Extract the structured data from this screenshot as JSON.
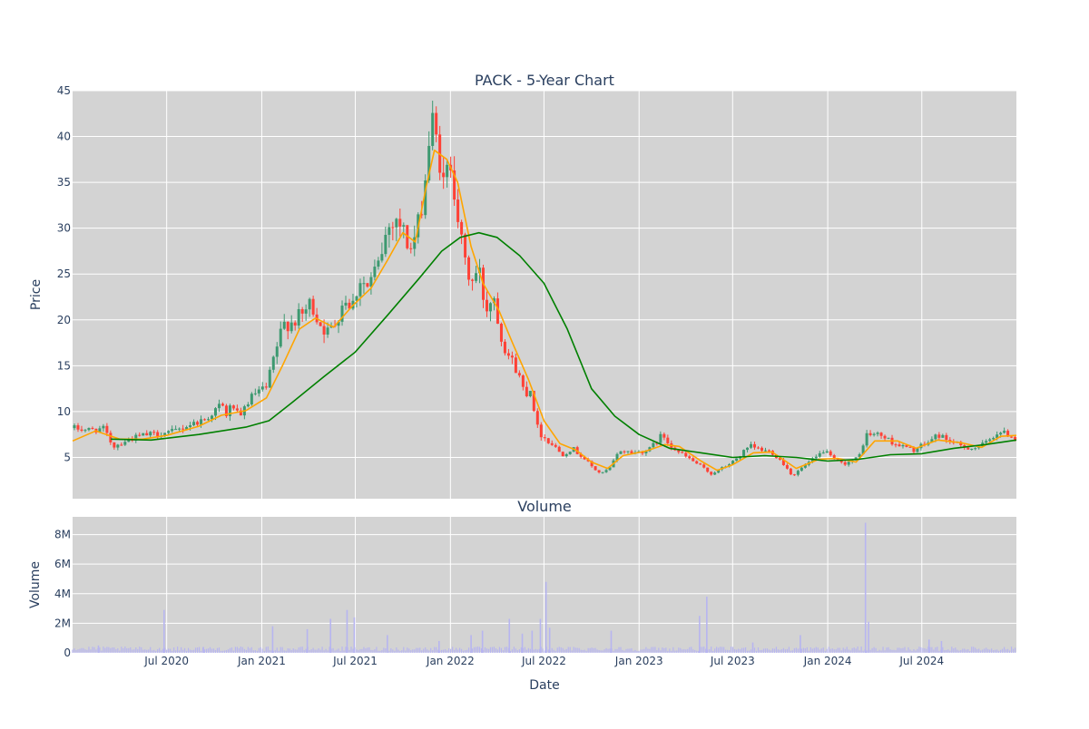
{
  "chart_data": [
    {
      "type": "candlestick",
      "title": "PACK - 5-Year Chart",
      "ylabel": "Price",
      "xlabel": "",
      "ylim": [
        0.5,
        45
      ],
      "yticks": [
        5,
        10,
        15,
        20,
        25,
        30,
        35,
        40,
        45
      ],
      "grid": true,
      "legend": "none",
      "x_range": [
        "2020-01-01",
        "2024-12-31"
      ],
      "colors": {
        "up": "#3d9970",
        "down": "#ff4136",
        "ma_short": "#ffa500",
        "ma_long": "#008000",
        "plot_bg": "#d3d3d3",
        "grid": "#ffffff"
      },
      "price_path": [
        [
          "2020-01-01",
          8.2
        ],
        [
          "2020-02-01",
          8.0
        ],
        [
          "2020-03-01",
          8.1
        ],
        [
          "2020-03-20",
          6.2
        ],
        [
          "2020-04-15",
          6.9
        ],
        [
          "2020-05-15",
          7.4
        ],
        [
          "2020-06-15",
          7.6
        ],
        [
          "2020-07-15",
          7.8
        ],
        [
          "2020-08-15",
          8.6
        ],
        [
          "2020-09-15",
          9.2
        ],
        [
          "2020-10-15",
          10.8
        ],
        [
          "2020-10-25",
          9.6
        ],
        [
          "2020-11-05",
          10.9
        ],
        [
          "2020-11-20",
          9.0
        ],
        [
          "2020-12-01",
          10.8
        ],
        [
          "2020-12-20",
          12.0
        ],
        [
          "2021-01-10",
          12.5
        ],
        [
          "2021-01-25",
          16.0
        ],
        [
          "2021-02-12",
          19.5
        ],
        [
          "2021-03-01",
          19.8
        ],
        [
          "2021-03-20",
          20.5
        ],
        [
          "2021-04-05",
          21.8
        ],
        [
          "2021-04-25",
          19.5
        ],
        [
          "2021-05-10",
          18.5
        ],
        [
          "2021-05-25",
          20.0
        ],
        [
          "2021-06-10",
          22.5
        ],
        [
          "2021-06-25",
          21.5
        ],
        [
          "2021-07-10",
          24.5
        ],
        [
          "2021-07-25",
          23.5
        ],
        [
          "2021-08-15",
          26.0
        ],
        [
          "2021-08-30",
          29.5
        ],
        [
          "2021-09-15",
          31.5
        ],
        [
          "2021-09-30",
          30.0
        ],
        [
          "2021-10-15",
          27.5
        ],
        [
          "2021-10-30",
          30.0
        ],
        [
          "2021-11-15",
          36.0
        ],
        [
          "2021-11-25",
          42.0
        ],
        [
          "2021-12-10",
          38.0
        ],
        [
          "2021-12-20",
          34.0
        ],
        [
          "2021-12-31",
          38.0
        ],
        [
          "2022-01-10",
          34.0
        ],
        [
          "2022-01-25",
          27.0
        ],
        [
          "2022-02-10",
          24.0
        ],
        [
          "2022-02-25",
          25.5
        ],
        [
          "2022-03-10",
          21.0
        ],
        [
          "2022-03-25",
          23.0
        ],
        [
          "2022-04-10",
          18.0
        ],
        [
          "2022-04-25",
          16.0
        ],
        [
          "2022-05-10",
          14.5
        ],
        [
          "2022-05-25",
          12.0
        ],
        [
          "2022-06-05",
          12.5
        ],
        [
          "2022-06-20",
          7.8
        ],
        [
          "2022-07-05",
          7.0
        ],
        [
          "2022-07-20",
          6.3
        ],
        [
          "2022-08-05",
          5.3
        ],
        [
          "2022-08-25",
          6.0
        ],
        [
          "2022-09-15",
          5.0
        ],
        [
          "2022-10-05",
          3.8
        ],
        [
          "2022-10-20",
          3.2
        ],
        [
          "2022-11-05",
          3.8
        ],
        [
          "2022-11-25",
          5.8
        ],
        [
          "2022-12-20",
          5.5
        ],
        [
          "2023-01-20",
          5.8
        ],
        [
          "2023-02-15",
          7.5
        ],
        [
          "2023-03-01",
          6.5
        ],
        [
          "2023-03-20",
          5.5
        ],
        [
          "2023-04-10",
          4.8
        ],
        [
          "2023-05-01",
          4.0
        ],
        [
          "2023-05-20",
          3.2
        ],
        [
          "2023-06-10",
          3.8
        ],
        [
          "2023-07-01",
          4.5
        ],
        [
          "2023-07-20",
          5.5
        ],
        [
          "2023-08-05",
          6.2
        ],
        [
          "2023-08-25",
          5.8
        ],
        [
          "2023-09-15",
          5.6
        ],
        [
          "2023-10-05",
          4.5
        ],
        [
          "2023-10-25",
          3.0
        ],
        [
          "2023-11-15",
          4.0
        ],
        [
          "2023-12-10",
          5.0
        ],
        [
          "2023-12-25",
          5.8
        ],
        [
          "2024-01-10",
          4.8
        ],
        [
          "2024-01-30",
          4.3
        ],
        [
          "2024-02-20",
          4.7
        ],
        [
          "2024-03-01",
          5.0
        ],
        [
          "2024-03-15",
          7.5
        ],
        [
          "2024-04-10",
          7.5
        ],
        [
          "2024-05-10",
          6.5
        ],
        [
          "2024-06-15",
          5.8
        ],
        [
          "2024-07-10",
          6.5
        ],
        [
          "2024-08-01",
          7.5
        ],
        [
          "2024-08-25",
          6.8
        ],
        [
          "2024-09-15",
          6.2
        ],
        [
          "2024-10-10",
          6.0
        ],
        [
          "2024-11-01",
          6.5
        ],
        [
          "2024-11-25",
          7.8
        ],
        [
          "2024-12-15",
          7.5
        ],
        [
          "2024-12-31",
          7.0
        ]
      ],
      "ma_short": [
        [
          "2020-01-01",
          6.8
        ],
        [
          "2020-02-15",
          7.9
        ],
        [
          "2020-04-01",
          7.0
        ],
        [
          "2020-05-15",
          7.0
        ],
        [
          "2020-07-01",
          7.4
        ],
        [
          "2020-09-01",
          8.4
        ],
        [
          "2020-10-15",
          9.6
        ],
        [
          "2020-12-01",
          10.1
        ],
        [
          "2021-01-10",
          11.5
        ],
        [
          "2021-02-10",
          15.0
        ],
        [
          "2021-03-15",
          19.0
        ],
        [
          "2021-04-15",
          20.2
        ],
        [
          "2021-05-20",
          19.2
        ],
        [
          "2021-06-25",
          21.5
        ],
        [
          "2021-08-01",
          23.5
        ],
        [
          "2021-09-01",
          26.5
        ],
        [
          "2021-10-01",
          29.5
        ],
        [
          "2021-10-25",
          28.5
        ],
        [
          "2021-11-15",
          34.5
        ],
        [
          "2021-12-01",
          38.5
        ],
        [
          "2021-12-25",
          37.5
        ],
        [
          "2022-01-15",
          35.0
        ],
        [
          "2022-02-10",
          28.0
        ],
        [
          "2022-03-05",
          24.0
        ],
        [
          "2022-04-05",
          21.0
        ],
        [
          "2022-05-01",
          17.5
        ],
        [
          "2022-06-01",
          13.5
        ],
        [
          "2022-07-01",
          9.0
        ],
        [
          "2022-08-01",
          6.5
        ],
        [
          "2022-09-01",
          5.8
        ],
        [
          "2022-10-01",
          4.5
        ],
        [
          "2022-11-01",
          3.8
        ],
        [
          "2022-12-01",
          5.2
        ],
        [
          "2023-01-15",
          5.7
        ],
        [
          "2023-02-20",
          6.4
        ],
        [
          "2023-03-20",
          6.2
        ],
        [
          "2023-05-01",
          4.6
        ],
        [
          "2023-06-01",
          3.6
        ],
        [
          "2023-07-01",
          4.2
        ],
        [
          "2023-08-10",
          5.5
        ],
        [
          "2023-09-15",
          5.6
        ],
        [
          "2023-11-01",
          3.8
        ],
        [
          "2023-12-15",
          4.8
        ],
        [
          "2024-01-20",
          4.9
        ],
        [
          "2024-02-25",
          4.5
        ],
        [
          "2024-04-01",
          6.8
        ],
        [
          "2024-05-15",
          6.8
        ],
        [
          "2024-06-20",
          6.0
        ],
        [
          "2024-08-01",
          6.9
        ],
        [
          "2024-09-15",
          6.6
        ],
        [
          "2024-10-25",
          6.1
        ],
        [
          "2024-12-01",
          7.3
        ],
        [
          "2024-12-31",
          7.4
        ]
      ],
      "ma_long": [
        [
          "2020-03-15",
          7.0
        ],
        [
          "2020-06-01",
          6.9
        ],
        [
          "2020-09-01",
          7.5
        ],
        [
          "2020-12-01",
          8.3
        ],
        [
          "2021-01-15",
          9.0
        ],
        [
          "2021-03-01",
          11.0
        ],
        [
          "2021-05-01",
          13.8
        ],
        [
          "2021-07-01",
          16.5
        ],
        [
          "2021-09-01",
          20.5
        ],
        [
          "2021-11-01",
          24.5
        ],
        [
          "2021-12-15",
          27.5
        ],
        [
          "2022-01-20",
          29.0
        ],
        [
          "2022-02-25",
          29.5
        ],
        [
          "2022-04-01",
          29.0
        ],
        [
          "2022-05-15",
          27.0
        ],
        [
          "2022-07-01",
          24.0
        ],
        [
          "2022-08-15",
          19.0
        ],
        [
          "2022-10-01",
          12.5
        ],
        [
          "2022-11-15",
          9.5
        ],
        [
          "2023-01-01",
          7.5
        ],
        [
          "2023-03-01",
          6.0
        ],
        [
          "2023-05-01",
          5.5
        ],
        [
          "2023-07-01",
          5.0
        ],
        [
          "2023-09-01",
          5.2
        ],
        [
          "2023-11-01",
          5.0
        ],
        [
          "2024-01-01",
          4.6
        ],
        [
          "2024-03-01",
          4.8
        ],
        [
          "2024-05-01",
          5.3
        ],
        [
          "2024-07-01",
          5.4
        ],
        [
          "2024-09-01",
          6.0
        ],
        [
          "2024-11-01",
          6.4
        ],
        [
          "2024-12-31",
          6.9
        ]
      ]
    },
    {
      "type": "bar",
      "title": "Volume",
      "ylabel": "Volume",
      "xlabel": "Date",
      "ylim": [
        0,
        9200000
      ],
      "yticks": [
        0,
        2000000,
        4000000,
        6000000,
        8000000
      ],
      "ytick_labels": [
        "0",
        "2M",
        "4M",
        "6M",
        "8M"
      ],
      "xticks": [
        "2020-07-01",
        "2021-01-01",
        "2021-07-01",
        "2022-01-01",
        "2022-07-01",
        "2023-01-01",
        "2023-07-01",
        "2024-01-01",
        "2024-07-01"
      ],
      "xtick_labels": [
        "Jul 2020",
        "Jan 2021",
        "Jul 2021",
        "Jan 2022",
        "Jul 2022",
        "Jan 2023",
        "Jul 2023",
        "Jan 2024",
        "Jul 2024"
      ],
      "grid": true,
      "colors": {
        "bar": "#b7b5f0"
      },
      "baseline_volume": 250000,
      "spikes": [
        [
          "2020-02-20",
          500000
        ],
        [
          "2020-06-26",
          2900000
        ],
        [
          "2020-09-10",
          400000
        ],
        [
          "2021-01-22",
          1800000
        ],
        [
          "2021-03-30",
          1600000
        ],
        [
          "2021-05-14",
          2300000
        ],
        [
          "2021-06-15",
          2900000
        ],
        [
          "2021-06-29",
          2400000
        ],
        [
          "2021-09-01",
          1200000
        ],
        [
          "2021-12-10",
          800000
        ],
        [
          "2022-02-10",
          1200000
        ],
        [
          "2022-03-04",
          1500000
        ],
        [
          "2022-04-25",
          2300000
        ],
        [
          "2022-05-20",
          1300000
        ],
        [
          "2022-06-08",
          1500000
        ],
        [
          "2022-06-24",
          2300000
        ],
        [
          "2022-07-05",
          4800000
        ],
        [
          "2022-07-12",
          1700000
        ],
        [
          "2022-11-08",
          1500000
        ],
        [
          "2023-04-28",
          2500000
        ],
        [
          "2023-05-12",
          3800000
        ],
        [
          "2023-08-09",
          700000
        ],
        [
          "2023-11-09",
          1200000
        ],
        [
          "2024-03-14",
          8800000
        ],
        [
          "2024-03-20",
          2100000
        ],
        [
          "2024-07-15",
          900000
        ],
        [
          "2024-08-08",
          800000
        ]
      ]
    }
  ]
}
